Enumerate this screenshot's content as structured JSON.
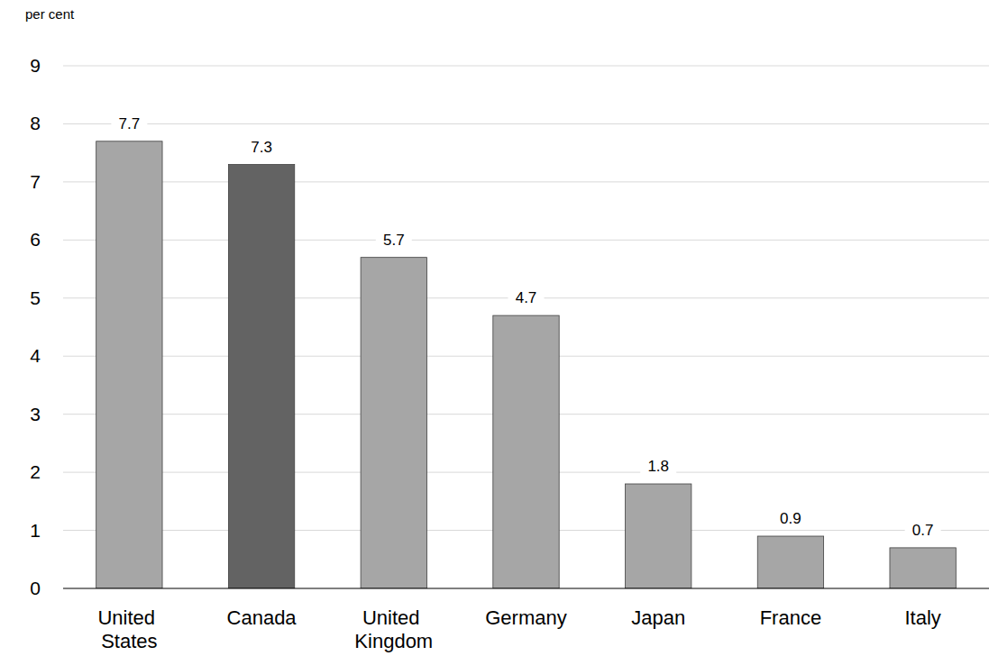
{
  "chart_data": {
    "type": "bar",
    "y_label": "per cent",
    "categories": [
      "United States",
      "Canada",
      "United Kingdom",
      "Germany",
      "Japan",
      "France",
      "Italy"
    ],
    "values": [
      7.7,
      7.3,
      5.7,
      4.7,
      1.8,
      0.9,
      0.7
    ],
    "colors": [
      "#a6a6a6",
      "#636363",
      "#a6a6a6",
      "#a6a6a6",
      "#a6a6a6",
      "#a6a6a6",
      "#a6a6a6"
    ],
    "ylim": [
      0,
      9
    ],
    "yticks": [
      0,
      1,
      2,
      3,
      4,
      5,
      6,
      7,
      8,
      9
    ],
    "grid": true,
    "data_labels": true
  }
}
